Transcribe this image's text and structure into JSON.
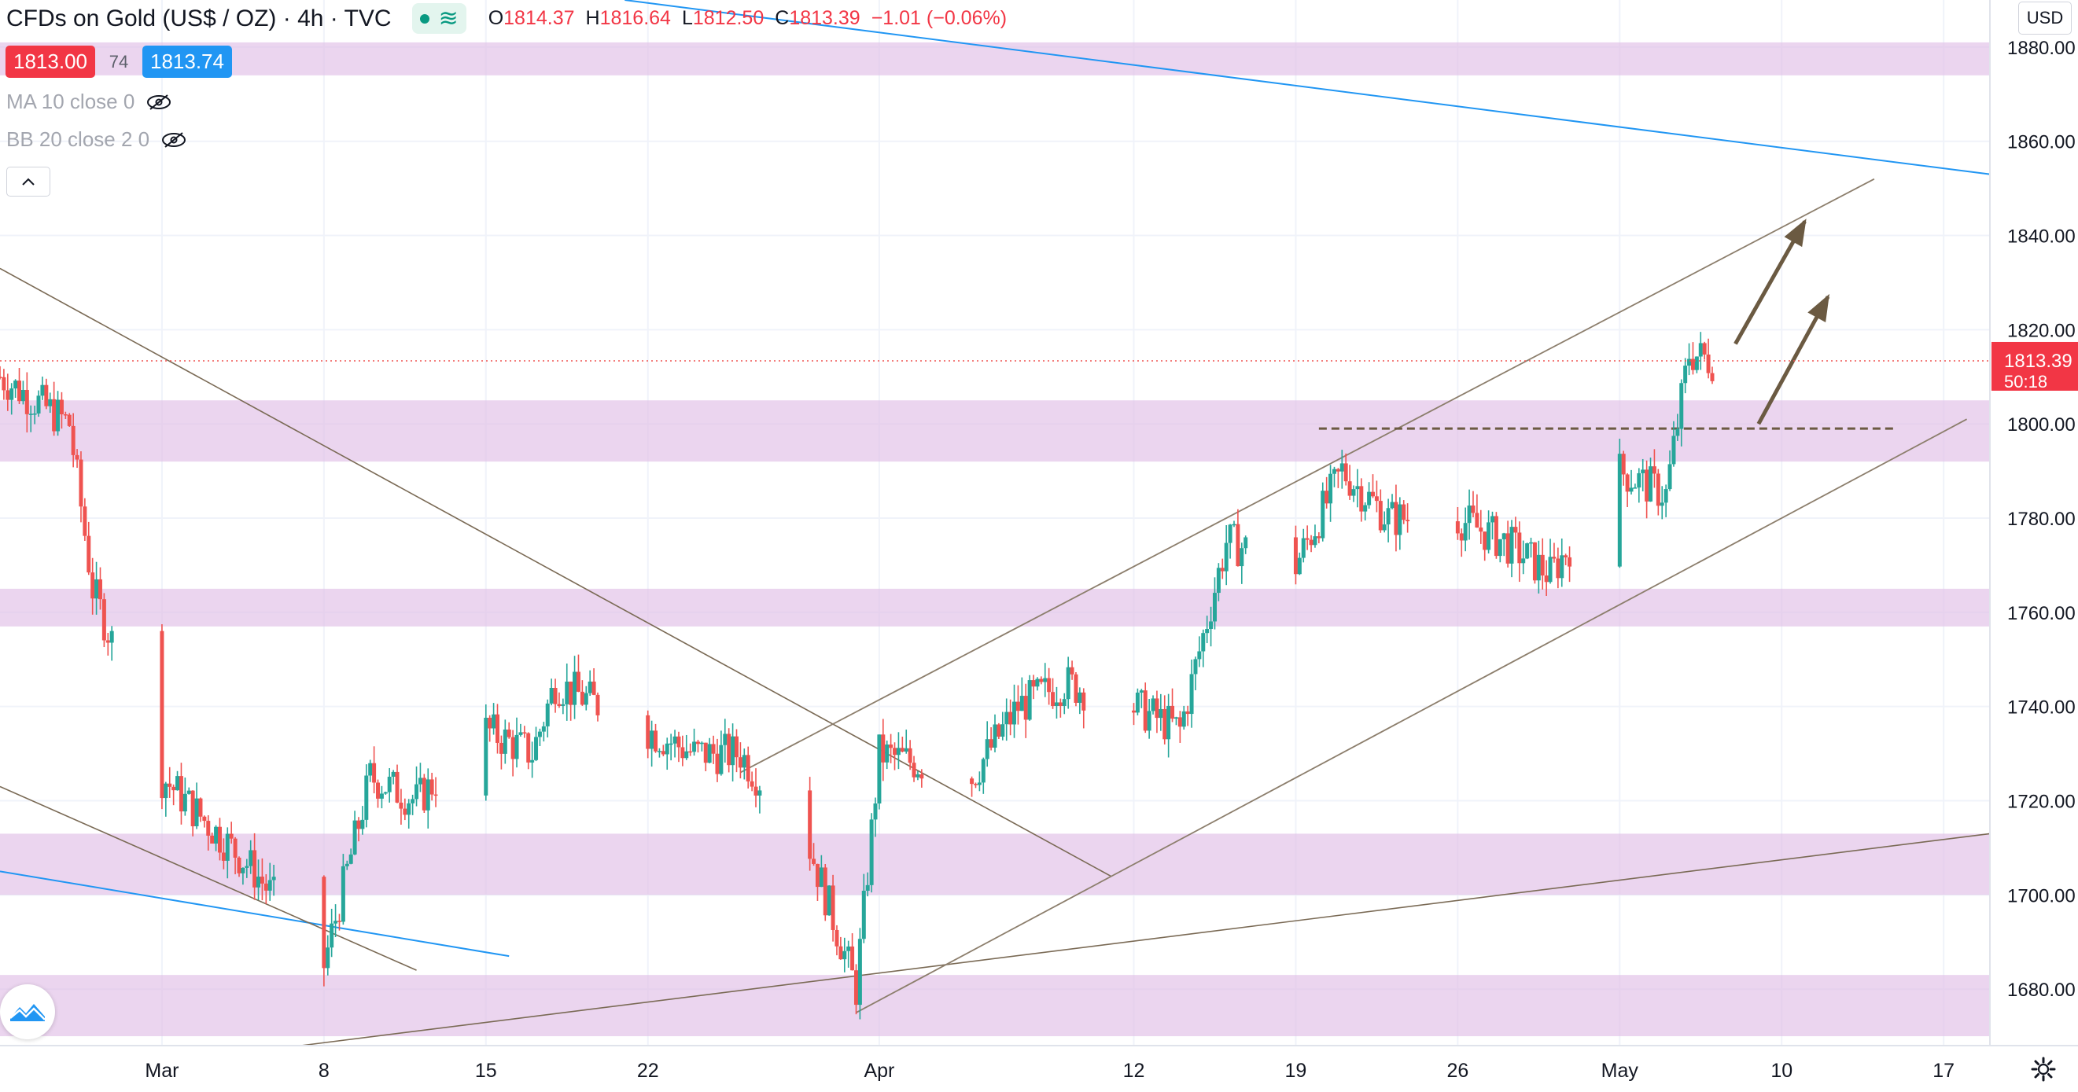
{
  "header": {
    "title": "CFDs on Gold (US$ / OZ) · 4h · TVC",
    "status_icon": "market-open-dot",
    "ohlc": {
      "open_label": "O",
      "open": "1814.37",
      "high_label": "H",
      "high": "1816.64",
      "low_label": "L",
      "low": "1812.50",
      "close_label": "C",
      "close": "1813.39",
      "change": "−1.01 (−0.06%)"
    },
    "bid": "1813.00",
    "spread": "74",
    "ask": "1813.74"
  },
  "indicators": [
    {
      "label": "MA 10 close 0",
      "icon": "eye-crossed-icon"
    },
    {
      "label": "BB 20 close 2 0",
      "icon": "eye-crossed-icon"
    }
  ],
  "currency_button": "USD",
  "colors": {
    "up": "#26a69a",
    "down": "#ef5350",
    "zone": "#e1bee7",
    "trend_blue": "#2196f3",
    "trend_brown": "#7a6a55",
    "channel": "#8c7e6c",
    "arrow": "#6b5a42"
  },
  "chart_data": {
    "type": "candlestick",
    "title": "CFDs on Gold (US$ / OZ)",
    "timeframe": "4h",
    "ylim": [
      1668,
      1890
    ],
    "y_ticks": [
      1680,
      1700,
      1720,
      1740,
      1760,
      1780,
      1800,
      1820,
      1840,
      1860,
      1880
    ],
    "x_tick_labels": [
      "Mar",
      "8",
      "15",
      "22",
      "Apr",
      "12",
      "19",
      "26",
      "May",
      "10",
      "17"
    ],
    "x_range": [
      "2021-02-22",
      "2021-05-19"
    ],
    "last_price": "1813.39",
    "countdown": "50:18",
    "closes": [
      {
        "date": "2021-02-22",
        "close": 1810
      },
      {
        "date": "2021-02-25",
        "close": 1800
      },
      {
        "date": "2021-02-26",
        "close": 1765
      },
      {
        "date": "2021-03-01",
        "close": 1725
      },
      {
        "date": "2021-03-03",
        "close": 1715
      },
      {
        "date": "2021-03-05",
        "close": 1705
      },
      {
        "date": "2021-03-08",
        "close": 1685
      },
      {
        "date": "2021-03-10",
        "close": 1725
      },
      {
        "date": "2021-03-12",
        "close": 1720
      },
      {
        "date": "2021-03-15",
        "close": 1735
      },
      {
        "date": "2021-03-17",
        "close": 1730
      },
      {
        "date": "2021-03-18",
        "close": 1745
      },
      {
        "date": "2021-03-22",
        "close": 1735
      },
      {
        "date": "2021-03-24",
        "close": 1730
      },
      {
        "date": "2021-03-26",
        "close": 1730
      },
      {
        "date": "2021-03-29",
        "close": 1710
      },
      {
        "date": "2021-03-31",
        "close": 1680
      },
      {
        "date": "2021-04-01",
        "close": 1730
      },
      {
        "date": "2021-04-05",
        "close": 1725
      },
      {
        "date": "2021-04-07",
        "close": 1740
      },
      {
        "date": "2021-04-09",
        "close": 1745
      },
      {
        "date": "2021-04-12",
        "close": 1740
      },
      {
        "date": "2021-04-14",
        "close": 1735
      },
      {
        "date": "2021-04-16",
        "close": 1775
      },
      {
        "date": "2021-04-19",
        "close": 1770
      },
      {
        "date": "2021-04-21",
        "close": 1790
      },
      {
        "date": "2021-04-23",
        "close": 1780
      },
      {
        "date": "2021-04-26",
        "close": 1780
      },
      {
        "date": "2021-04-28",
        "close": 1775
      },
      {
        "date": "2021-04-30",
        "close": 1768
      },
      {
        "date": "2021-05-03",
        "close": 1790
      },
      {
        "date": "2021-05-05",
        "close": 1785
      },
      {
        "date": "2021-05-06",
        "close": 1815
      },
      {
        "date": "2021-05-07",
        "close": 1813.39
      }
    ],
    "support_resistance_zones": [
      {
        "low": 1874,
        "high": 1881
      },
      {
        "low": 1792,
        "high": 1805
      },
      {
        "low": 1757,
        "high": 1765
      },
      {
        "low": 1700,
        "high": 1713
      },
      {
        "low": 1670,
        "high": 1683
      }
    ],
    "trendlines": [
      {
        "name": "long-term-resistance",
        "from": [
          "2021-03-21",
          1890
        ],
        "to": [
          "2021-05-19",
          1853
        ]
      },
      {
        "name": "short-term-resistance",
        "from": [
          "2021-02-22",
          1705
        ],
        "to": [
          "2021-03-16",
          1687
        ]
      },
      {
        "name": "falling-line-upper",
        "from": [
          "2021-02-22",
          1833
        ],
        "to": [
          "2021-04-11",
          1704
        ]
      },
      {
        "name": "falling-line-lower",
        "from": [
          "2021-02-22",
          1723
        ],
        "to": [
          "2021-03-12",
          1684
        ]
      },
      {
        "name": "long-term-support",
        "from": [
          "2021-03-07",
          1668
        ],
        "to": [
          "2021-05-19",
          1713
        ]
      },
      {
        "name": "channel-top",
        "from": [
          "2021-03-26",
          1726
        ],
        "to": [
          "2021-05-14",
          1852
        ]
      },
      {
        "name": "channel-bottom",
        "from": [
          "2021-03-31",
          1675
        ],
        "to": [
          "2021-05-18",
          1801
        ]
      },
      {
        "name": "neckline",
        "from": [
          "2021-04-20",
          1799
        ],
        "to": [
          "2021-05-15",
          1799
        ]
      }
    ],
    "arrows": [
      {
        "from": [
          "2021-05-08",
          1817
        ],
        "to": [
          "2021-05-11",
          1843
        ]
      },
      {
        "from": [
          "2021-05-09",
          1800
        ],
        "to": [
          "2021-05-12",
          1827
        ]
      }
    ]
  }
}
